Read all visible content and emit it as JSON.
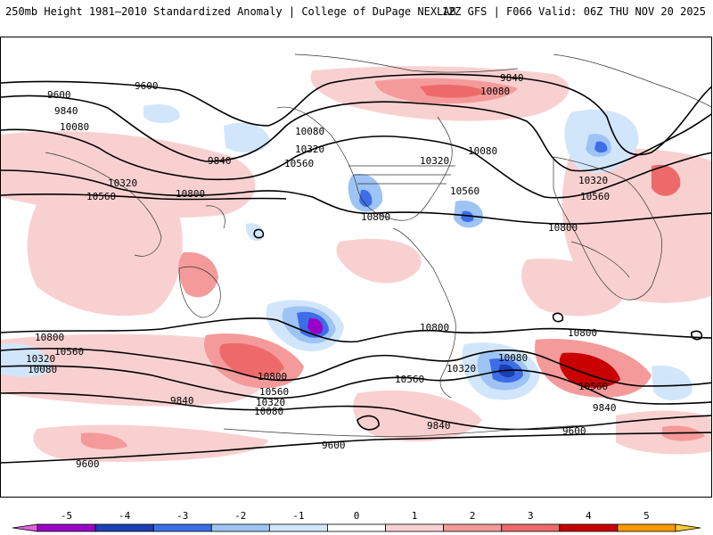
{
  "header": {
    "title": "250mb Height 1981–2010 Standardized Anomaly | College of DuPage NEXLAB",
    "run_info": "12Z GFS | F066 Valid: 06Z THU NOV 20 2025"
  },
  "map": {
    "contour_labels": [
      "9600",
      "9840",
      "10080",
      "10320",
      "10560",
      "10800"
    ]
  },
  "colorbar": {
    "tick_labels": [
      "-5",
      "-4",
      "-3",
      "-2",
      "-1",
      "0",
      "1",
      "2",
      "3",
      "4",
      "5"
    ],
    "colors": [
      "#e060e0",
      "#9a00c8",
      "#1a3fb5",
      "#3d6ee8",
      "#9ec4f5",
      "#d2e6fb",
      "#ffffff",
      "#f9d0d0",
      "#f49a9a",
      "#ee6a6a",
      "#c80000",
      "#ff9900",
      "#ffcc33"
    ]
  }
}
